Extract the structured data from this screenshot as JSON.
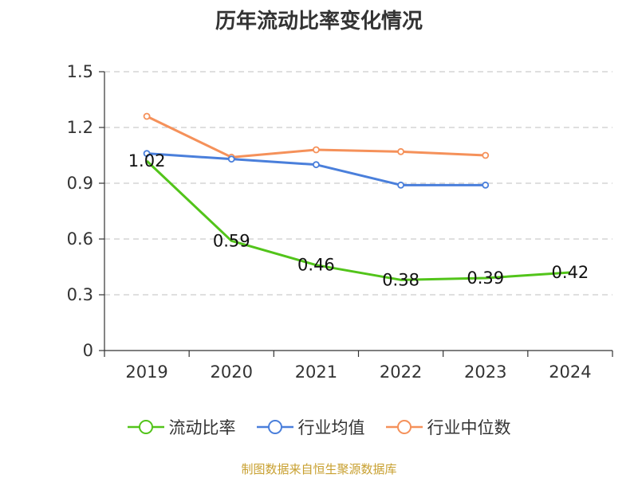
{
  "chart_data": {
    "type": "line",
    "title": "历年流动比率变化情况",
    "categories": [
      "2019",
      "2020",
      "2021",
      "2022",
      "2023",
      "2024"
    ],
    "ylim": [
      0,
      1.5
    ],
    "yticks": [
      "0",
      "0.3",
      "0.6",
      "0.9",
      "1.2",
      "1.5"
    ],
    "grid": true,
    "legend_position": "bottom",
    "series": [
      {
        "name": "流动比率",
        "color": "#52c41a",
        "values": [
          1.02,
          0.59,
          0.46,
          0.38,
          0.39,
          0.42
        ],
        "labels": [
          "1.02",
          "0.59",
          "0.46",
          "0.38",
          "0.39",
          "0.42"
        ]
      },
      {
        "name": "行业均值",
        "color": "#4a7fdb",
        "values": [
          1.06,
          1.03,
          1.0,
          0.89,
          0.89,
          null
        ]
      },
      {
        "name": "行业中位数",
        "color": "#f5915a",
        "values": [
          1.26,
          1.04,
          1.08,
          1.07,
          1.05,
          null
        ]
      }
    ]
  },
  "source": "制图数据来自恒生聚源数据库"
}
